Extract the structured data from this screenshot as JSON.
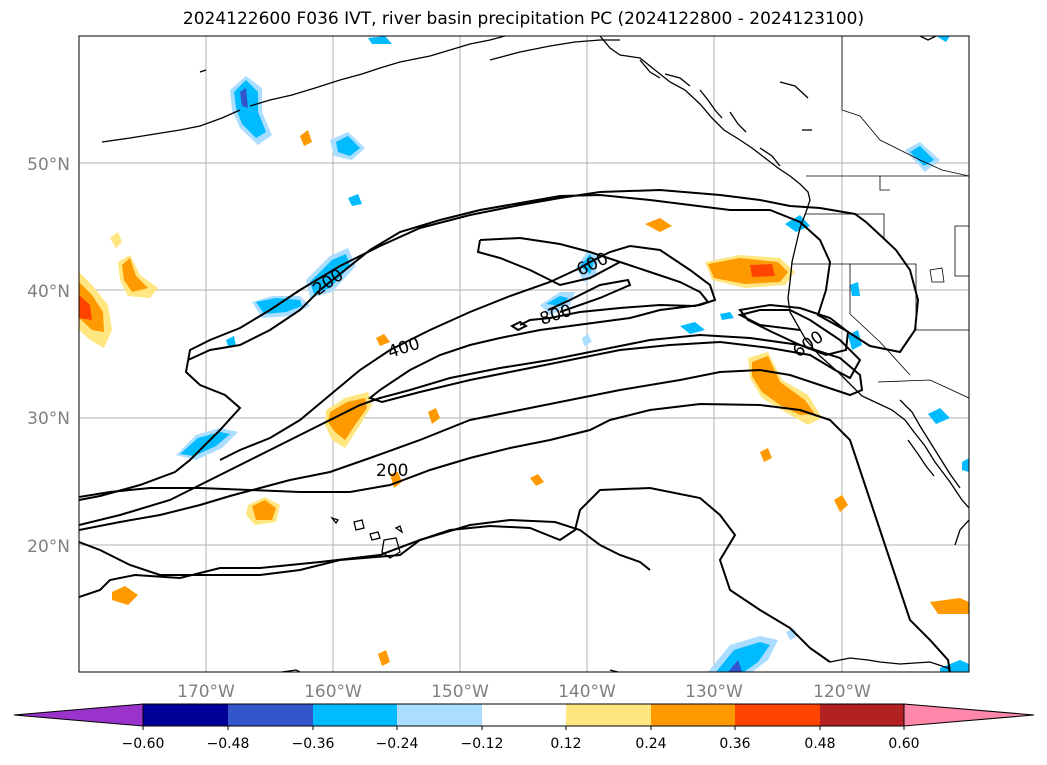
{
  "title": "2024122600 F036 IVT, river basin precipitation PC (2024122800 - 2024123100)",
  "map": {
    "lon_range": [
      -180,
      -110
    ],
    "lat_range": [
      10,
      60
    ],
    "lat_ticks": [
      {
        "value": 20,
        "label": "20°N"
      },
      {
        "value": 30,
        "label": "30°N"
      },
      {
        "value": 40,
        "label": "40°N"
      },
      {
        "value": 50,
        "label": "50°N"
      }
    ],
    "lon_ticks": [
      {
        "value": -170,
        "label": "170°W"
      },
      {
        "value": -160,
        "label": "160°W"
      },
      {
        "value": -150,
        "label": "150°W"
      },
      {
        "value": -140,
        "label": "140°W"
      },
      {
        "value": -130,
        "label": "130°W"
      },
      {
        "value": -120,
        "label": "120°W"
      }
    ],
    "grid": true,
    "ivt_contour_labels": [
      "200",
      "200",
      "400",
      "600",
      "600",
      "800"
    ]
  },
  "colorbar": {
    "labels": [
      "−0.60",
      "−0.48",
      "−0.36",
      "−0.24",
      "−0.12",
      "0.12",
      "0.24",
      "0.36",
      "0.48",
      "0.60"
    ],
    "colors": [
      "#9933cc",
      "#000099",
      "#3355cc",
      "#00bbff",
      "#aaddff",
      "#ffffff",
      "#ffe680",
      "#ff9900",
      "#ff4400",
      "#b22222",
      "#ff88aa"
    ]
  }
}
